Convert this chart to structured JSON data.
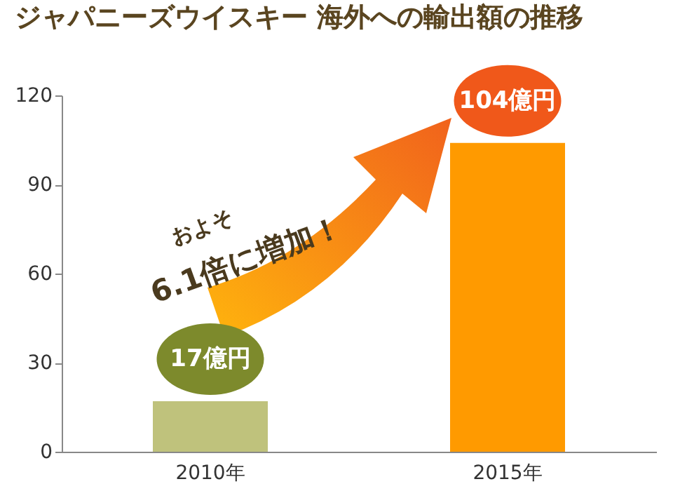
{
  "chart_data": {
    "type": "bar",
    "title": "ジャパニーズウイスキー 海外への輸出額の推移",
    "categories": [
      "2010年",
      "2015年"
    ],
    "values": [
      17,
      104
    ],
    "colors": [
      "#bfc27c",
      "#ff9a00"
    ],
    "value_labels": [
      "17億円",
      "104億円"
    ],
    "annotations": [
      "およそ",
      "6.1倍に増加！"
    ],
    "ylim": [
      0,
      120
    ],
    "yticks": [
      0,
      30,
      60,
      90,
      120
    ]
  }
}
